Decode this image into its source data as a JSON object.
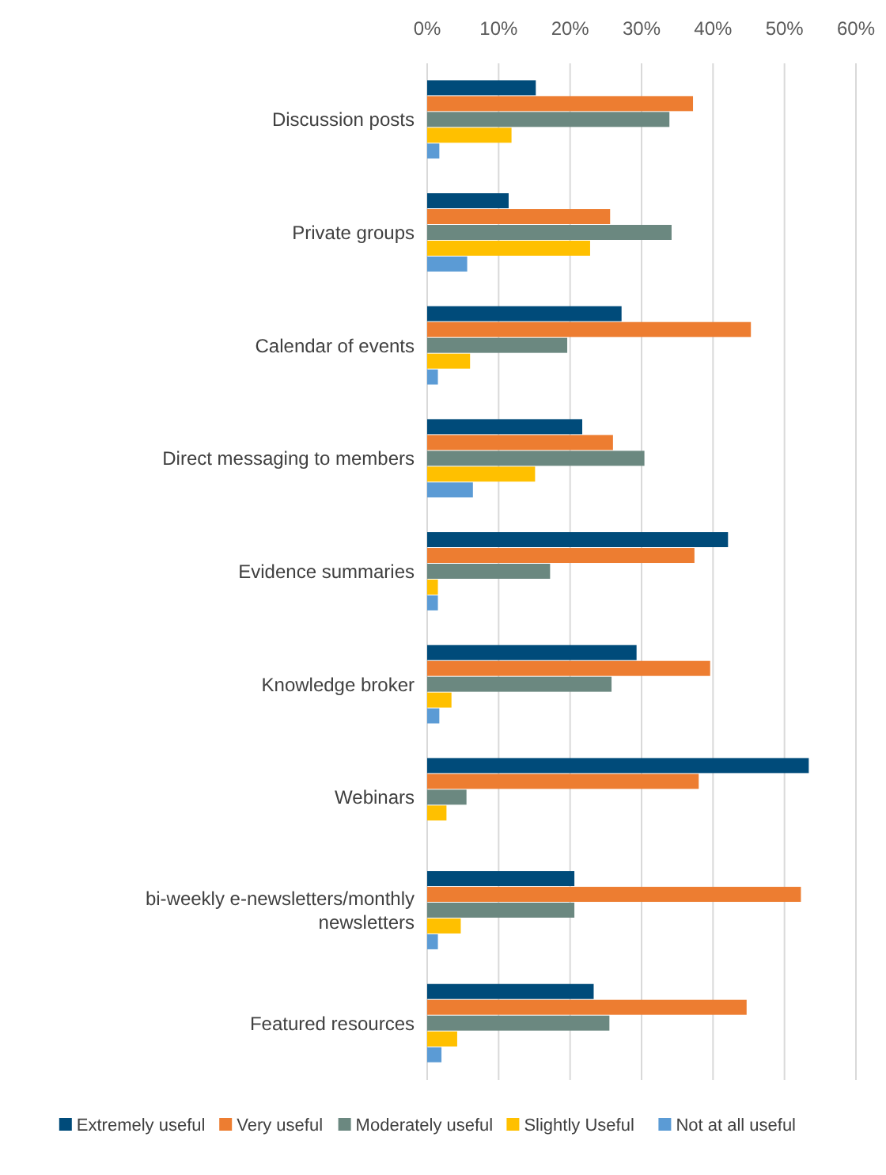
{
  "chart_data": {
    "type": "bar",
    "orientation": "horizontal",
    "categories": [
      "Discussion posts",
      "Private groups",
      "Calendar of events",
      "Direct messaging to members",
      "Evidence summaries",
      "Knowledge broker",
      "Webinars",
      "bi-weekly e-newsletters/monthly newsletters",
      "Featured resources"
    ],
    "series": [
      {
        "name": "Extremely useful",
        "color": "#004b7a",
        "values": [
          15.2,
          11.4,
          27.2,
          21.7,
          42.1,
          29.3,
          53.4,
          20.6,
          23.3
        ]
      },
      {
        "name": "Very useful",
        "color": "#ed7d31",
        "values": [
          37.2,
          25.6,
          45.3,
          26.0,
          37.4,
          39.6,
          38.0,
          52.3,
          44.7
        ]
      },
      {
        "name": "Moderately useful",
        "color": "#6b8880",
        "values": [
          33.9,
          34.2,
          19.6,
          30.4,
          17.2,
          25.8,
          5.5,
          20.6,
          25.5
        ]
      },
      {
        "name": "Slightly Useful",
        "color": "#ffc000",
        "values": [
          11.8,
          22.8,
          6.0,
          15.1,
          1.5,
          3.4,
          2.7,
          4.7,
          4.2
        ]
      },
      {
        "name": "Not at all useful",
        "color": "#5b9bd5",
        "values": [
          1.7,
          5.6,
          1.5,
          6.4,
          1.5,
          1.7,
          0,
          1.5,
          2.0
        ]
      }
    ],
    "xlim": [
      0,
      60
    ],
    "xticks": [
      {
        "value": 0,
        "label": "0%"
      },
      {
        "value": 10,
        "label": "10%"
      },
      {
        "value": 20,
        "label": "20%"
      },
      {
        "value": 30,
        "label": "30%"
      },
      {
        "value": 40,
        "label": "40%"
      },
      {
        "value": 50,
        "label": "50%"
      },
      {
        "value": 60,
        "label": "60%"
      }
    ],
    "grid": "x",
    "legend": "bottom"
  }
}
